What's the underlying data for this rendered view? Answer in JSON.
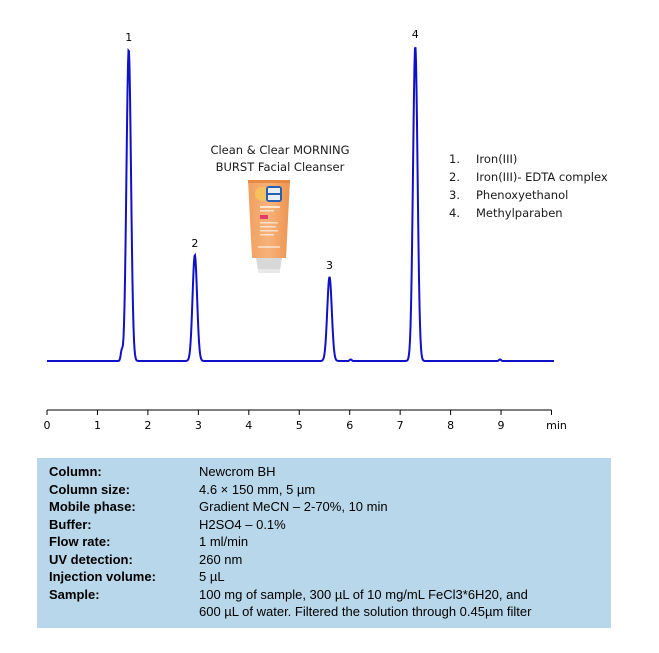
{
  "chart_data": {
    "type": "line",
    "title": "",
    "subtitle": "Clean & Clear MORNING BURST Facial Cleanser",
    "xlabel": "min",
    "ylabel": "",
    "xlim": [
      0,
      10
    ],
    "xticks": [
      "0",
      "1",
      "2",
      "3",
      "4",
      "5",
      "6",
      "7",
      "8",
      "9",
      "min"
    ],
    "grid": false,
    "series": [
      {
        "name": "UV 260 nm chromatogram",
        "color": "#1010c8",
        "peaks": [
          {
            "label": "1",
            "rt_min": 1.62,
            "relative_height": 1.0
          },
          {
            "label": "2",
            "rt_min": 2.93,
            "relative_height": 0.34
          },
          {
            "label": "3",
            "rt_min": 5.6,
            "relative_height": 0.27
          },
          {
            "label": "4",
            "rt_min": 7.3,
            "relative_height": 1.01
          }
        ],
        "minor_peaks": [
          {
            "rt_min": 1.48,
            "relative_height": 0.03
          },
          {
            "rt_min": 6.02,
            "relative_height": 0.005
          },
          {
            "rt_min": 8.98,
            "relative_height": 0.005
          }
        ]
      }
    ],
    "legend": [
      {
        "num": "1.",
        "name": "Iron(III)"
      },
      {
        "num": "2.",
        "name": "Iron(III)- EDTA complex"
      },
      {
        "num": "3.",
        "name": "Phenoxyethanol"
      },
      {
        "num": "4.",
        "name": "Methylparaben"
      }
    ]
  },
  "product": {
    "title_line1": "Clean & Clear MORNING",
    "title_line2": "BURST Facial Cleanser",
    "image_icon": "cleanser-tube-image"
  },
  "conditions": [
    {
      "key": "Column:",
      "value": "Newcrom BH"
    },
    {
      "key": "Column size:",
      "value": "4.6 × 150 mm, 5 µm"
    },
    {
      "key": "Mobile phase:",
      "value": "Gradient MeCN – 2-70%, 10 min"
    },
    {
      "key": "Buffer:",
      "value": "H2SO4 – 0.1%"
    },
    {
      "key": "Flow rate:",
      "value": "1 ml/min"
    },
    {
      "key": "UV detection:",
      "value": "260 nm"
    },
    {
      "key": "Injection volume:",
      "value": "5 µL"
    },
    {
      "key": "Sample:",
      "value": "100 mg of sample, 300 µL of 10 mg/mL FeCl3*6H20, and",
      "value2": "600 µL of water. Filtered the solution through 0.45µm filter"
    }
  ],
  "colors": {
    "trace": "#1010c8",
    "panel": "#b9d7ea"
  }
}
